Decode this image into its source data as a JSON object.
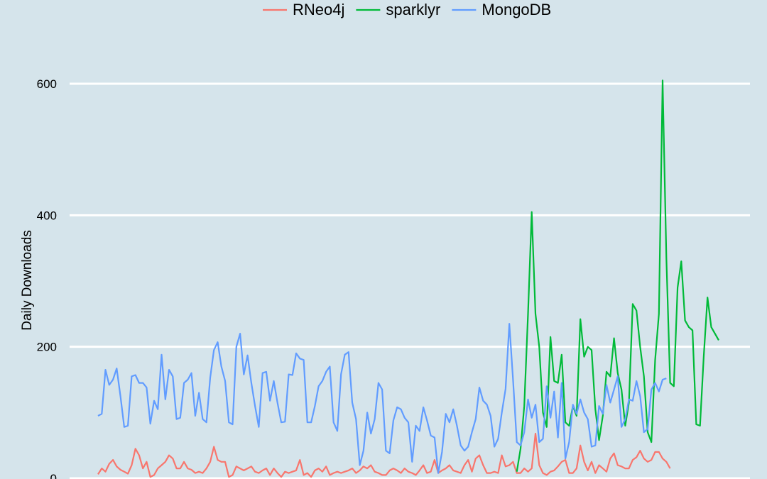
{
  "chart_data": {
    "type": "line",
    "title": "",
    "xlabel": "",
    "ylabel": "Daily Downloads",
    "ylim": [
      0,
      700
    ],
    "yticks": [
      0,
      200,
      400,
      600
    ],
    "grid": "horizontal",
    "legend_position": "top",
    "x": "day index (no x tick labels shown)",
    "series": [
      {
        "name": "RNeo4j",
        "color": "#f8766d",
        "start_index": 0,
        "values": [
          6,
          15,
          10,
          22,
          28,
          18,
          13,
          10,
          7,
          20,
          45,
          35,
          15,
          25,
          2,
          5,
          15,
          20,
          25,
          35,
          30,
          15,
          15,
          25,
          15,
          13,
          8,
          10,
          8,
          15,
          25,
          48,
          28,
          25,
          25,
          2,
          5,
          18,
          15,
          12,
          15,
          18,
          10,
          8,
          12,
          15,
          5,
          15,
          8,
          2,
          10,
          8,
          10,
          12,
          28,
          5,
          8,
          2,
          12,
          15,
          10,
          18,
          5,
          8,
          10,
          8,
          10,
          12,
          15,
          8,
          12,
          18,
          15,
          20,
          10,
          8,
          5,
          5,
          12,
          15,
          12,
          8,
          15,
          10,
          8,
          5,
          12,
          20,
          8,
          10,
          28,
          8,
          12,
          15,
          20,
          12,
          10,
          8,
          20,
          28,
          10,
          30,
          35,
          20,
          8,
          8,
          10,
          8,
          35,
          18,
          20,
          25,
          8,
          8,
          15,
          10,
          15,
          68,
          20,
          8,
          5,
          10,
          12,
          18,
          25,
          28,
          8,
          8,
          15,
          50,
          25,
          12,
          25,
          8,
          20,
          15,
          10,
          30,
          38,
          20,
          18,
          15,
          15,
          28,
          32,
          42,
          30,
          25,
          28,
          40,
          40,
          30,
          25,
          15
        ]
      },
      {
        "name": "sparklyr",
        "color": "#00ba38",
        "start_index": 112,
        "values": [
          10,
          45,
          110,
          250,
          405,
          250,
          200,
          100,
          78,
          215,
          148,
          145,
          188,
          85,
          80,
          110,
          95,
          242,
          185,
          200,
          195,
          105,
          58,
          95,
          162,
          155,
          213,
          160,
          135,
          80,
          115,
          265,
          255,
          200,
          155,
          70,
          55,
          180,
          250,
          605,
          335,
          145,
          140,
          290,
          330,
          240,
          230,
          225,
          82,
          80,
          185,
          275,
          230,
          220,
          210
        ]
      },
      {
        "name": "MongoDB",
        "color": "#619cff",
        "start_index": 0,
        "values": [
          95,
          98,
          165,
          142,
          150,
          167,
          125,
          78,
          80,
          155,
          157,
          145,
          145,
          138,
          83,
          118,
          105,
          188,
          120,
          165,
          155,
          90,
          92,
          145,
          150,
          160,
          95,
          130,
          90,
          85,
          153,
          195,
          207,
          170,
          148,
          85,
          82,
          200,
          220,
          158,
          187,
          145,
          110,
          78,
          160,
          162,
          118,
          148,
          115,
          85,
          86,
          158,
          157,
          190,
          182,
          180,
          85,
          85,
          110,
          140,
          148,
          162,
          170,
          85,
          72,
          158,
          188,
          192,
          115,
          90,
          20,
          42,
          100,
          68,
          90,
          145,
          135,
          42,
          38,
          88,
          108,
          105,
          92,
          85,
          25,
          80,
          72,
          108,
          88,
          65,
          62,
          8,
          40,
          98,
          85,
          105,
          80,
          50,
          42,
          48,
          70,
          90,
          138,
          118,
          112,
          95,
          48,
          60,
          100,
          136,
          235,
          150,
          55,
          50,
          70,
          120,
          92,
          112,
          55,
          60,
          140,
          92,
          132,
          62,
          145,
          30,
          55,
          112,
          98,
          120,
          100,
          90,
          48,
          50,
          110,
          98,
          142,
          115,
          135,
          155,
          78,
          90,
          120,
          118,
          148,
          125,
          70,
          75,
          135,
          145,
          132,
          150,
          152
        ]
      }
    ]
  }
}
